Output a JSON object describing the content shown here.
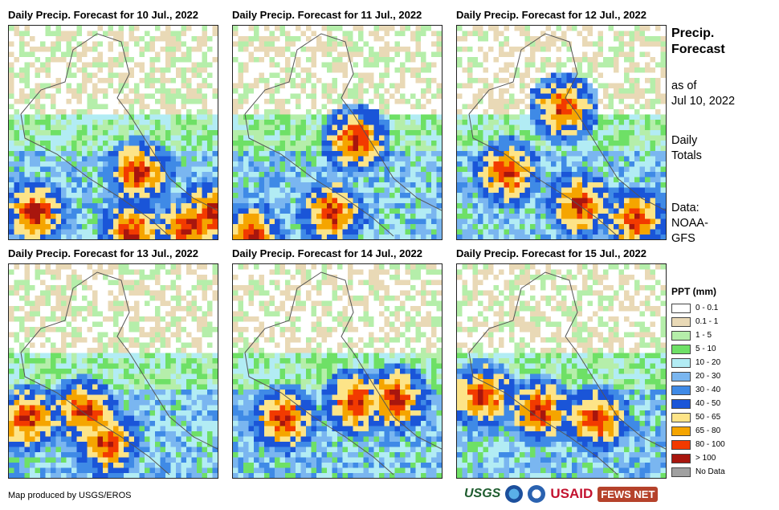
{
  "panels": [
    {
      "title": "Daily Precip. Forecast for 10 Jul., 2022"
    },
    {
      "title": "Daily Precip. Forecast for 11 Jul., 2022"
    },
    {
      "title": "Daily Precip. Forecast for 12 Jul., 2022"
    },
    {
      "title": "Daily Precip. Forecast for 13 Jul., 2022"
    },
    {
      "title": "Daily Precip. Forecast for 14 Jul., 2022"
    },
    {
      "title": "Daily Precip. Forecast for 15 Jul., 2022"
    }
  ],
  "sidebar": {
    "title_line1": "Precip.",
    "title_line2": "Forecast",
    "asof_line1": "as of",
    "asof_line2": "Jul 10, 2022",
    "totals_line1": "Daily",
    "totals_line2": "Totals",
    "data_line1": "Data:",
    "data_line2": "NOAA-",
    "data_line3": "GFS"
  },
  "legend": {
    "title": "PPT (mm)",
    "items": [
      {
        "label": "0 - 0.1",
        "color": "#ffffff"
      },
      {
        "label": "0.1 - 1",
        "color": "#e9d9b6"
      },
      {
        "label": "1 - 5",
        "color": "#b5eeaa"
      },
      {
        "label": "5 - 10",
        "color": "#6ee066"
      },
      {
        "label": "10 - 20",
        "color": "#b2ecf4"
      },
      {
        "label": "20 - 30",
        "color": "#7ab6f0"
      },
      {
        "label": "30 - 40",
        "color": "#3f8ae6"
      },
      {
        "label": "40 - 50",
        "color": "#1a55d8"
      },
      {
        "label": "50 - 65",
        "color": "#fde488"
      },
      {
        "label": "65 - 80",
        "color": "#f5a500"
      },
      {
        "label": "80 - 100",
        "color": "#f23a00"
      },
      {
        "label": "> 100",
        "color": "#a8160e"
      },
      {
        "label": "No Data",
        "color": "#a0a0a0"
      }
    ]
  },
  "footer": {
    "credit": "Map produced by USGS/EROS"
  },
  "logos": {
    "usgs": "USGS",
    "usaid": "USAID",
    "fews": "FEWS NET"
  }
}
